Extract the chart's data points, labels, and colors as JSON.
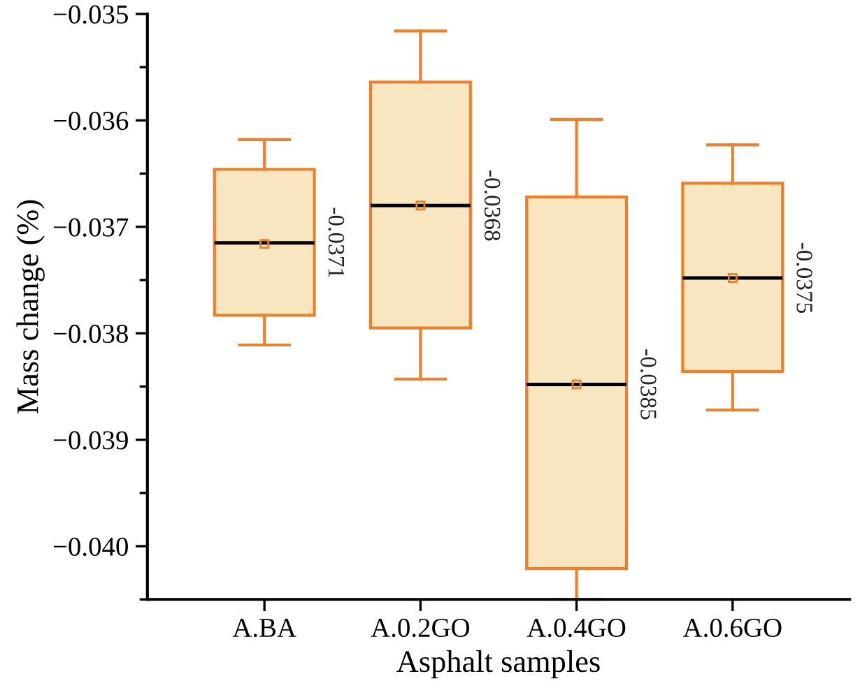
{
  "chart_data": {
    "type": "box",
    "xlabel": "Asphalt samples",
    "ylabel": "Mass change (%)",
    "categories": [
      "A.BA",
      "A.0.2GO",
      "A.0.4GO",
      "A.0.6GO"
    ],
    "series": [
      {
        "color": "#f07f2a",
        "colors": [
          "#f8e6c0",
          "#f8e6c0",
          "#f8e6c0",
          "#f8e6c0"
        ],
        "boxes": [
          {
            "low": -0.03811,
            "q1": -0.03783,
            "median": -0.03715,
            "q3": -0.03646,
            "high": -0.03618,
            "mean": -0.03716
          },
          {
            "low": -0.03843,
            "q1": -0.03795,
            "median": -0.0368,
            "q3": -0.03564,
            "high": -0.03516,
            "mean": -0.0368
          },
          {
            "low": -0.0405,
            "q1": -0.04021,
            "median": -0.03848,
            "q3": -0.03672,
            "high": -0.03599,
            "mean": -0.03848
          },
          {
            "low": -0.03872,
            "q1": -0.03836,
            "median": -0.03748,
            "q3": -0.03659,
            "high": -0.03623,
            "mean": -0.03748
          }
        ]
      }
    ],
    "annotations": [
      {
        "text": "-0.0371",
        "x": "A.BA",
        "y": -0.03715
      },
      {
        "text": "-0.0368",
        "x": "A.0.2GO",
        "y": -0.0368
      },
      {
        "text": "-0.0385",
        "x": "A.0.4GO",
        "y": -0.03848
      },
      {
        "text": "-0.0375",
        "x": "A.0.6GO",
        "y": -0.03748
      }
    ],
    "ylim": [
      -0.0405,
      -0.035
    ],
    "yticks": [
      {
        "value": -0.04,
        "label": "−0.040"
      },
      {
        "value": -0.039,
        "label": "−0.039"
      },
      {
        "value": -0.038,
        "label": "−0.038"
      },
      {
        "value": -0.037,
        "label": "−0.037"
      },
      {
        "value": -0.036,
        "label": "−0.036"
      },
      {
        "value": -0.035,
        "label": "−0.035"
      }
    ],
    "grid": false,
    "legend": false
  }
}
